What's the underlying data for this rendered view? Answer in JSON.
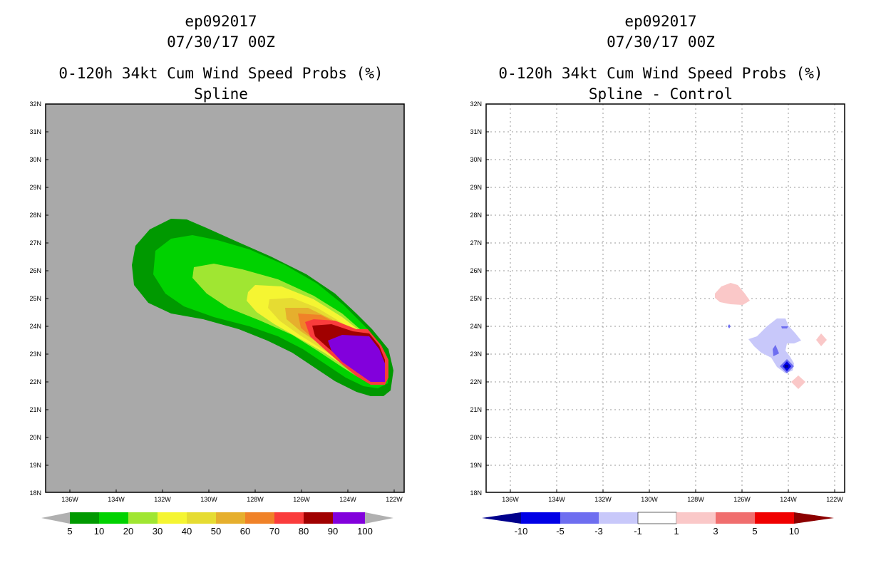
{
  "left_panel": {
    "title_lines": [
      "ep092017",
      "07/30/17 00Z",
      "0-120h 34kt Cum Wind Speed Probs (%)",
      "Spline"
    ],
    "map_background": "#a9a9a9",
    "lat_labels": [
      "32N",
      "31N",
      "30N",
      "29N",
      "28N",
      "27N",
      "26N",
      "25N",
      "24N",
      "23N",
      "22N",
      "21N",
      "20N",
      "19N",
      "18N"
    ],
    "lon_labels": [
      "136W",
      "134W",
      "132W",
      "130W",
      "128W",
      "126W",
      "124W",
      "122W"
    ],
    "legend": {
      "colors": [
        "#009900",
        "#00d200",
        "#a0e632",
        "#f5f532",
        "#e6dc32",
        "#e6af2d",
        "#f08228",
        "#fa3c3c",
        "#a00000",
        "#8200dc"
      ],
      "labels": [
        "5",
        "10",
        "20",
        "30",
        "40",
        "50",
        "60",
        "70",
        "80",
        "90",
        "100"
      ],
      "over_under_color": "#b0b0b0"
    }
  },
  "right_panel": {
    "title_lines": [
      "ep092017",
      "07/30/17 00Z",
      "0-120h 34kt Cum Wind Speed Probs (%)",
      "Spline - Control"
    ],
    "map_background": "#ffffff",
    "lat_labels": [
      "32N",
      "31N",
      "30N",
      "29N",
      "28N",
      "27N",
      "26N",
      "25N",
      "24N",
      "23N",
      "22N",
      "21N",
      "20N",
      "19N",
      "18N"
    ],
    "lon_labels": [
      "136W",
      "134W",
      "132W",
      "130W",
      "128W",
      "126W",
      "124W",
      "122W"
    ],
    "legend": {
      "colors": [
        "#0000e6",
        "#6e6ef0",
        "#c8c8fa",
        "#ffffff",
        "#fac8c8",
        "#f06e6e",
        "#f00000"
      ],
      "labels": [
        "-10",
        "-5",
        "-3",
        "-1",
        "1",
        "3",
        "5",
        "10"
      ],
      "under_color": "#00008c",
      "over_color": "#8c0000"
    }
  }
}
